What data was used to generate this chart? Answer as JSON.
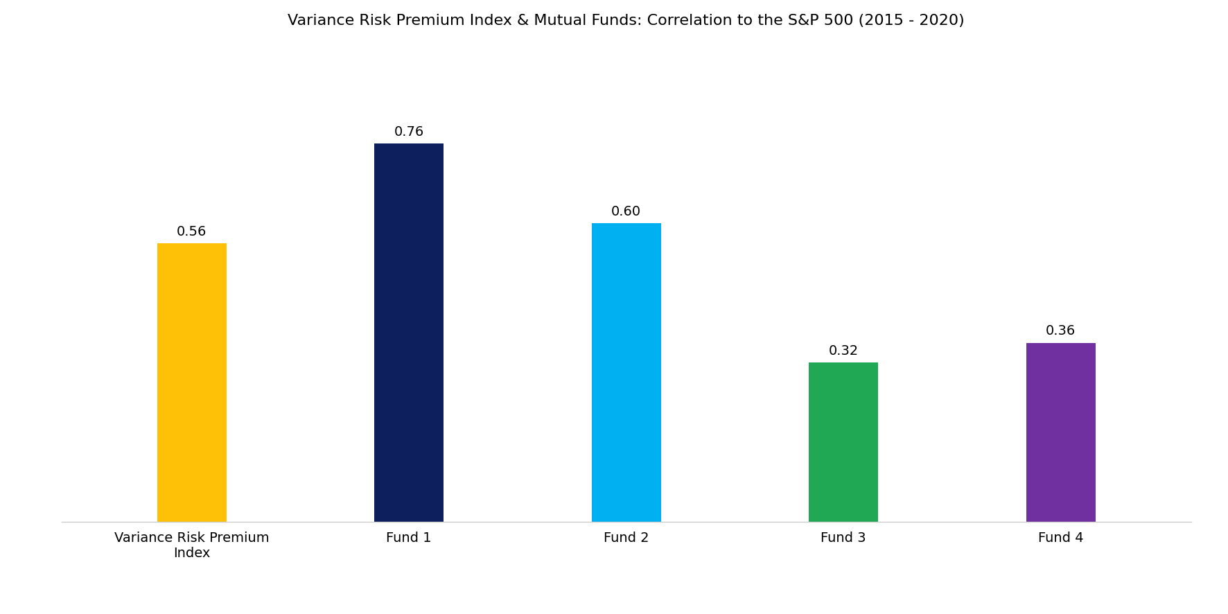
{
  "title": "Variance Risk Premium Index & Mutual Funds: Correlation to the S&P 500 (2015 - 2020)",
  "categories": [
    "Variance Risk Premium\nIndex",
    "Fund 1",
    "Fund 2",
    "Fund 3",
    "Fund 4"
  ],
  "values": [
    0.56,
    0.76,
    0.6,
    0.32,
    0.36
  ],
  "bar_colors": [
    "#FFC107",
    "#0D1F5C",
    "#00B0F0",
    "#21A855",
    "#7030A0"
  ],
  "value_labels": [
    "0.56",
    "0.76",
    "0.60",
    "0.32",
    "0.36"
  ],
  "ylim": [
    0,
    0.95
  ],
  "title_fontsize": 16,
  "tick_fontsize": 14,
  "value_fontsize": 14,
  "background_color": "#FFFFFF",
  "bar_width": 0.32
}
